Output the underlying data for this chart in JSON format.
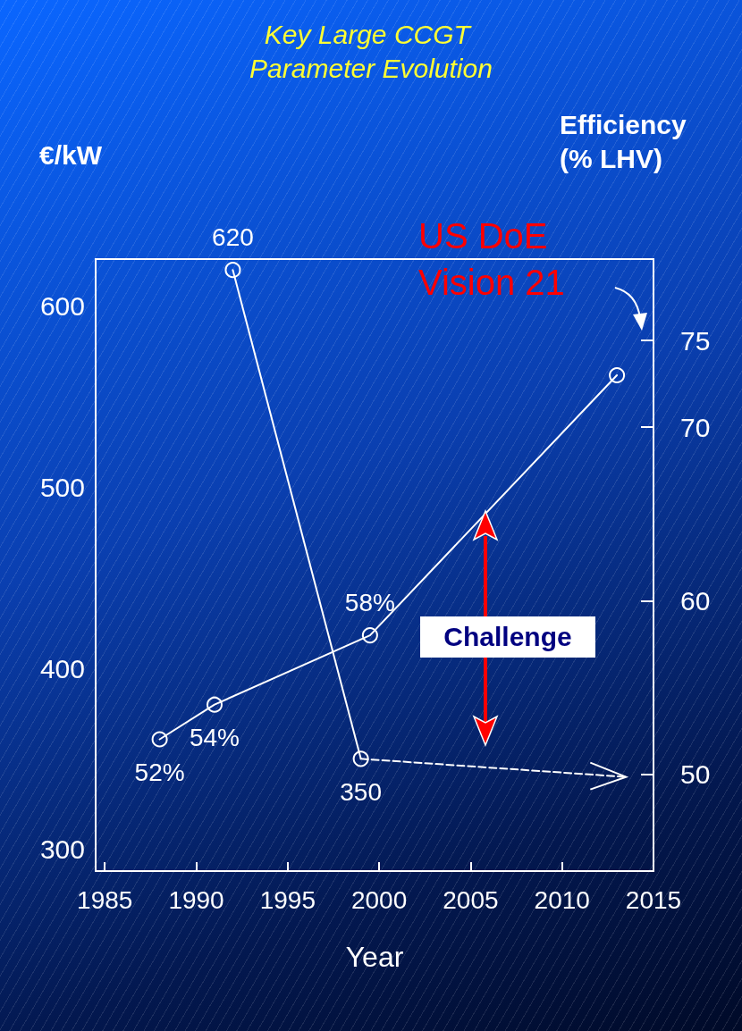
{
  "chart_data": {
    "type": "line",
    "title": "Key Large CCGT Parameter Evolution",
    "xlabel": "Year",
    "ylabel": "€/kW",
    "y2label": "Efficiency (% LHV)",
    "xlim": [
      1984.5,
      2015
    ],
    "xticks": [
      1985,
      1990,
      1995,
      2000,
      2005,
      2010,
      2015
    ],
    "ylim": [
      288,
      626
    ],
    "yticks": [
      300,
      400,
      500,
      600
    ],
    "y2lim": [
      44.4,
      79.7
    ],
    "y2ticks": [
      50,
      60,
      70,
      75
    ],
    "grid": false,
    "marker": "circle",
    "series": [
      {
        "color": "#ffffff",
        "x": [
          1992,
          1999
        ],
        "values": [
          620,
          350
        ],
        "value_labels": [
          "620",
          "350"
        ]
      },
      {
        "color": "#ffffff",
        "x": [
          1999,
          2013.5
        ],
        "values": [
          350,
          340
        ],
        "line_style": "dashed",
        "marker": "none"
      },
      {
        "color": "#ffffff",
        "axis": "y2",
        "x": [
          1988,
          1991,
          1999.5,
          2013
        ],
        "values": [
          52,
          54,
          58,
          73
        ],
        "value_labels": [
          "52%",
          "54%",
          "58%",
          null
        ]
      }
    ],
    "annotations": [
      "US DoE Vision 21",
      "Challenge"
    ]
  }
}
